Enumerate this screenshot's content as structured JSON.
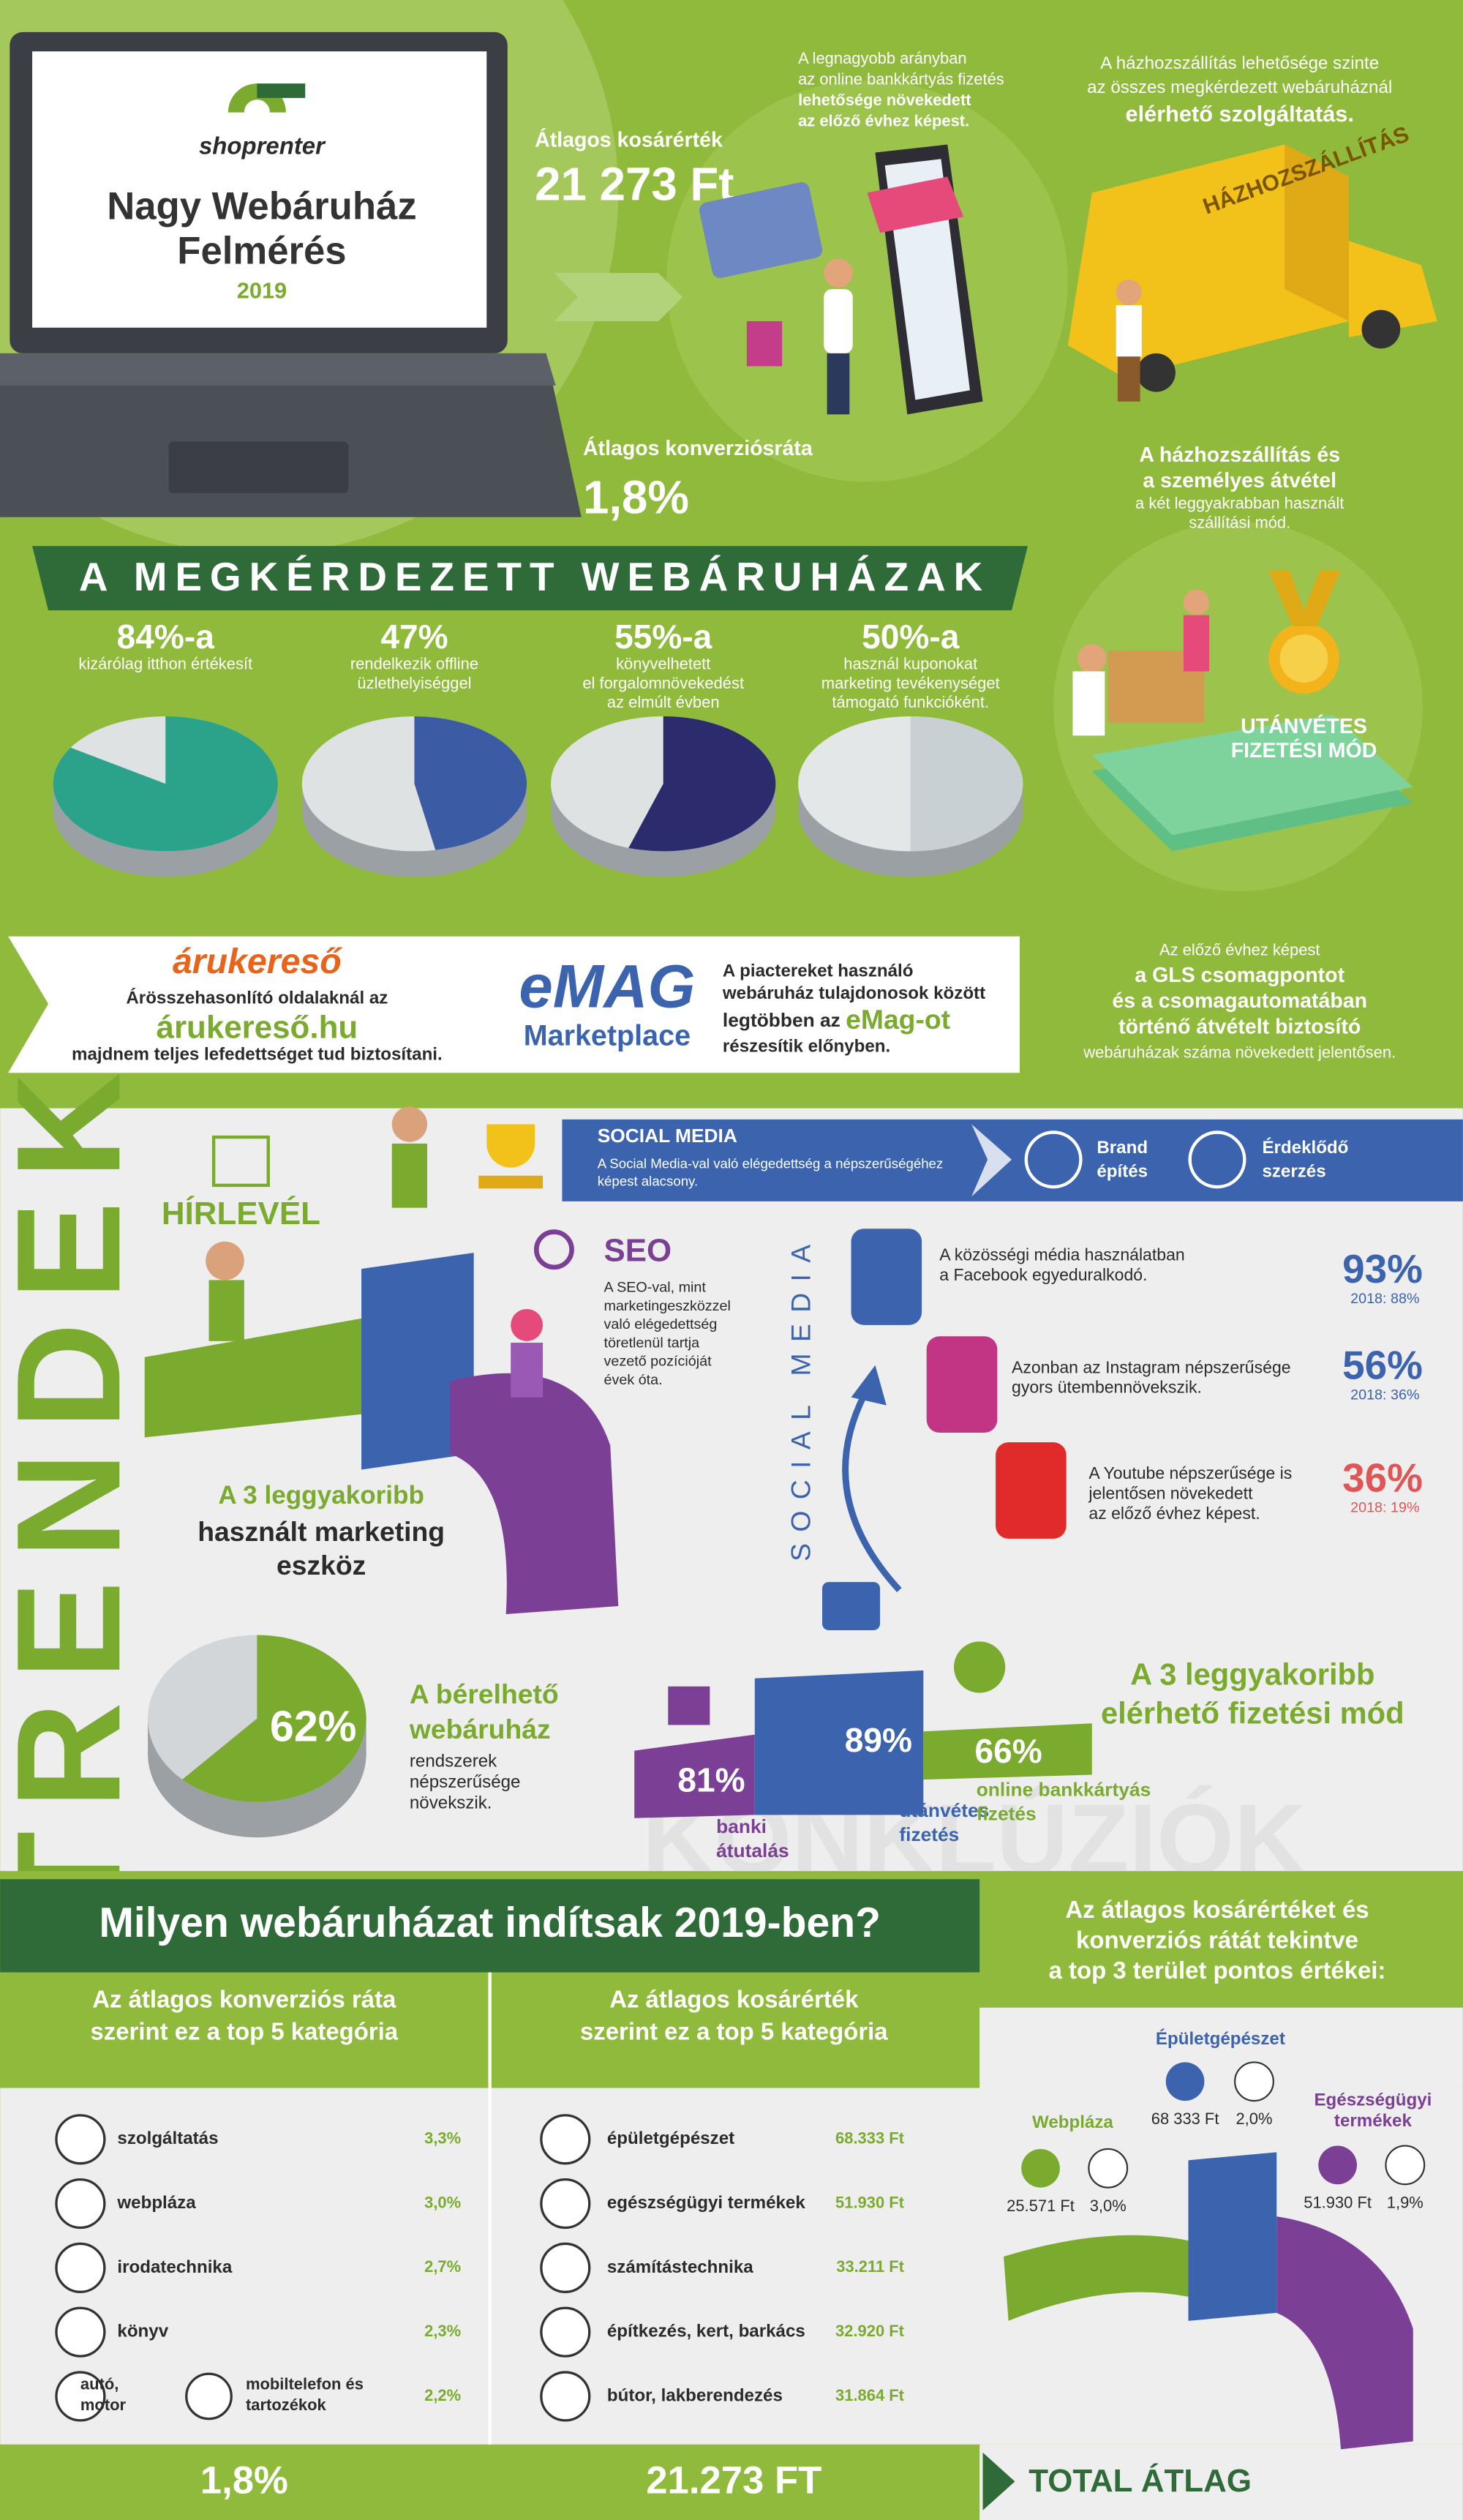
{
  "header": {
    "brand": "shoprenter",
    "title_lines": [
      "Nagy Webáruház",
      "Felmérés"
    ],
    "year": "2019"
  },
  "highlights": {
    "basket_label": "Átlagos kosárérték",
    "basket_value": "21 273 Ft",
    "conversion_label": "Átlagos konverziósráta",
    "conversion_value": "1,8%"
  },
  "card_note": [
    "A legnagyobb arányban",
    "az online bankkártyás fizetés",
    "lehetősége növekedett",
    "az előző évhez képest."
  ],
  "delivery_note": [
    "A házhozszállítás lehetősége szinte",
    "az összes megkérdezett webáruháznál",
    "elérhető szolgáltatás."
  ],
  "van_label": "HÁZHOZSZÁLLÍTÁS",
  "delivery_modes": [
    "A házhozszállítás és",
    "a személyes átvétel",
    "a két leggyakrabban használt",
    "szállítási mód."
  ],
  "cod": [
    "UTÁNVÉTES",
    "FIZETÉSI MÓD"
  ],
  "survey": {
    "title": "A MEGKÉRDEZETT WEBÁRUHÁZAK",
    "items": [
      {
        "value": 84,
        "label": "84%-a",
        "desc": [
          "kizárólag itthon értékesít"
        ]
      },
      {
        "value": 47,
        "label": "47%",
        "desc": [
          "rendelkezik offline",
          "üzlethelyiséggel"
        ]
      },
      {
        "value": 55,
        "label": "55%-a",
        "desc": [
          "könyvelhetett",
          "el forgalomnövekedést",
          "az elmúlt évben"
        ]
      },
      {
        "value": 50,
        "label": "50%-a",
        "desc": [
          "használ kuponokat",
          "marketing tevékenységet",
          "támogató funkcióként."
        ]
      }
    ]
  },
  "arukereso": {
    "logo": "árukereső",
    "lines": [
      "Árösszehasonlító oldalaknál az",
      "árukereső.hu",
      "majdnem teljes lefedettséget tud biztosítani."
    ]
  },
  "emag": {
    "logo": "eMAG",
    "sub": "Marketplace",
    "lines": [
      "A piactereket használó",
      "webáruház tulajdonosok között",
      "legtöbben az ",
      "eMag-ot",
      "részesítik előnyben."
    ]
  },
  "gls": [
    "Az előző évhez képest",
    "a GLS csomagpontot",
    "és a csomagautomatában",
    "történő átvételt biztosító",
    "webáruházak száma növekedett jelentősen."
  ],
  "trends": {
    "title": "TRENDEK",
    "social_bar": {
      "title": "SOCIAL MEDIA",
      "text": [
        "A Social Media-val való elégedettség a népszerűségéhez",
        "képest alacsony."
      ],
      "goals": [
        [
          "Brand",
          "építés"
        ],
        [
          "Érdeklődő",
          "szerzés"
        ]
      ]
    },
    "newsletter": "HÍRLEVÉL",
    "seo": {
      "title": "SEO",
      "text": [
        "A SEO-val, mint",
        "marketingeszközzel",
        "való elégedettség",
        "töretlenül tartja",
        "vezető pozícióját",
        "évek óta."
      ]
    },
    "marketing": [
      "A 3 leggyakoribb",
      "használt marketing",
      "eszköz"
    ],
    "social_label": "SOCIAL MEDIA",
    "social": [
      {
        "text": [
          "A közösségi média használatban",
          "a Facebook egyeduralkodó."
        ],
        "value": "93%",
        "prev": "2018: 88%"
      },
      {
        "text": [
          "Azonban az Instagram népszerűsége",
          "gyors ütembennövekszik."
        ],
        "value": "56%",
        "prev": "2018: 36%"
      },
      {
        "text": [
          "A Youtube népszerűsége is",
          "jelentősen növekedett",
          "az előző évhez képest."
        ],
        "value": "36%",
        "prev": "2018: 19%"
      }
    ],
    "rental": {
      "pie": {
        "value": 62,
        "label": "62%"
      },
      "text": [
        "A bérelhető",
        "webáruház",
        "rendszerek",
        "népszerűsége",
        "növekszik."
      ]
    },
    "payments": {
      "title": [
        "A 3 leggyakoribb",
        "elérhető fizetési mód"
      ],
      "items": [
        {
          "value": "81%",
          "label": [
            "banki",
            "átutalás"
          ]
        },
        {
          "value": "89%",
          "label": [
            "utánvétes",
            "fizetés"
          ]
        },
        {
          "value": "66%",
          "label": [
            "online bankkártyás",
            "fizetés"
          ]
        }
      ]
    },
    "watermark": "KONKLÚZIÓK"
  },
  "conclusions": {
    "title": "Milyen webáruházat indítsak 2019-ben?",
    "conversion": {
      "heading": [
        "Az átlagos konverziós ráta",
        "szerint ez a top 5 kategória"
      ],
      "rows": [
        [
          "szolgáltatás",
          "3,3%"
        ],
        [
          "webpláza",
          "3,0%"
        ],
        [
          "irodatechnika",
          "2,7%"
        ],
        [
          "könyv",
          "2,3%"
        ]
      ],
      "last": {
        "a": [
          "autó,",
          "motor"
        ],
        "b": [
          "mobiltelefon és",
          "tartozékok"
        ],
        "value": "2,2%"
      },
      "total": "1,8%"
    },
    "basket": {
      "heading": [
        "Az átlagos kosárérték",
        "szerint ez a top 5 kategória"
      ],
      "rows": [
        [
          "épületgépészet",
          "68.333 Ft"
        ],
        [
          "egészségügyi termékek",
          "51.930 Ft"
        ],
        [
          "számítástechnika",
          "33.211 Ft"
        ],
        [
          "építkezés, kert, barkács",
          "32.920 Ft"
        ],
        [
          "bútor, lakberendezés",
          "31.864 Ft"
        ]
      ],
      "total": "21.273 FT"
    },
    "total_label": "TOTAL ÁTLAG",
    "top3": {
      "heading": [
        "Az átlagos kosárértéket és",
        "konverziós rátát tekintve",
        "a top 3 terület pontos értékei:"
      ],
      "areas": [
        {
          "name": [
            "Webpláza"
          ],
          "basket": "25.571 Ft",
          "conversion": "3,0%"
        },
        {
          "name": [
            "Épületgépészet"
          ],
          "basket": "68 333 Ft",
          "conversion": "2,0%"
        },
        {
          "name": [
            "Egészségügyi",
            "termékek"
          ],
          "basket": "51.930 Ft",
          "conversion": "1,9%"
        }
      ]
    }
  }
}
